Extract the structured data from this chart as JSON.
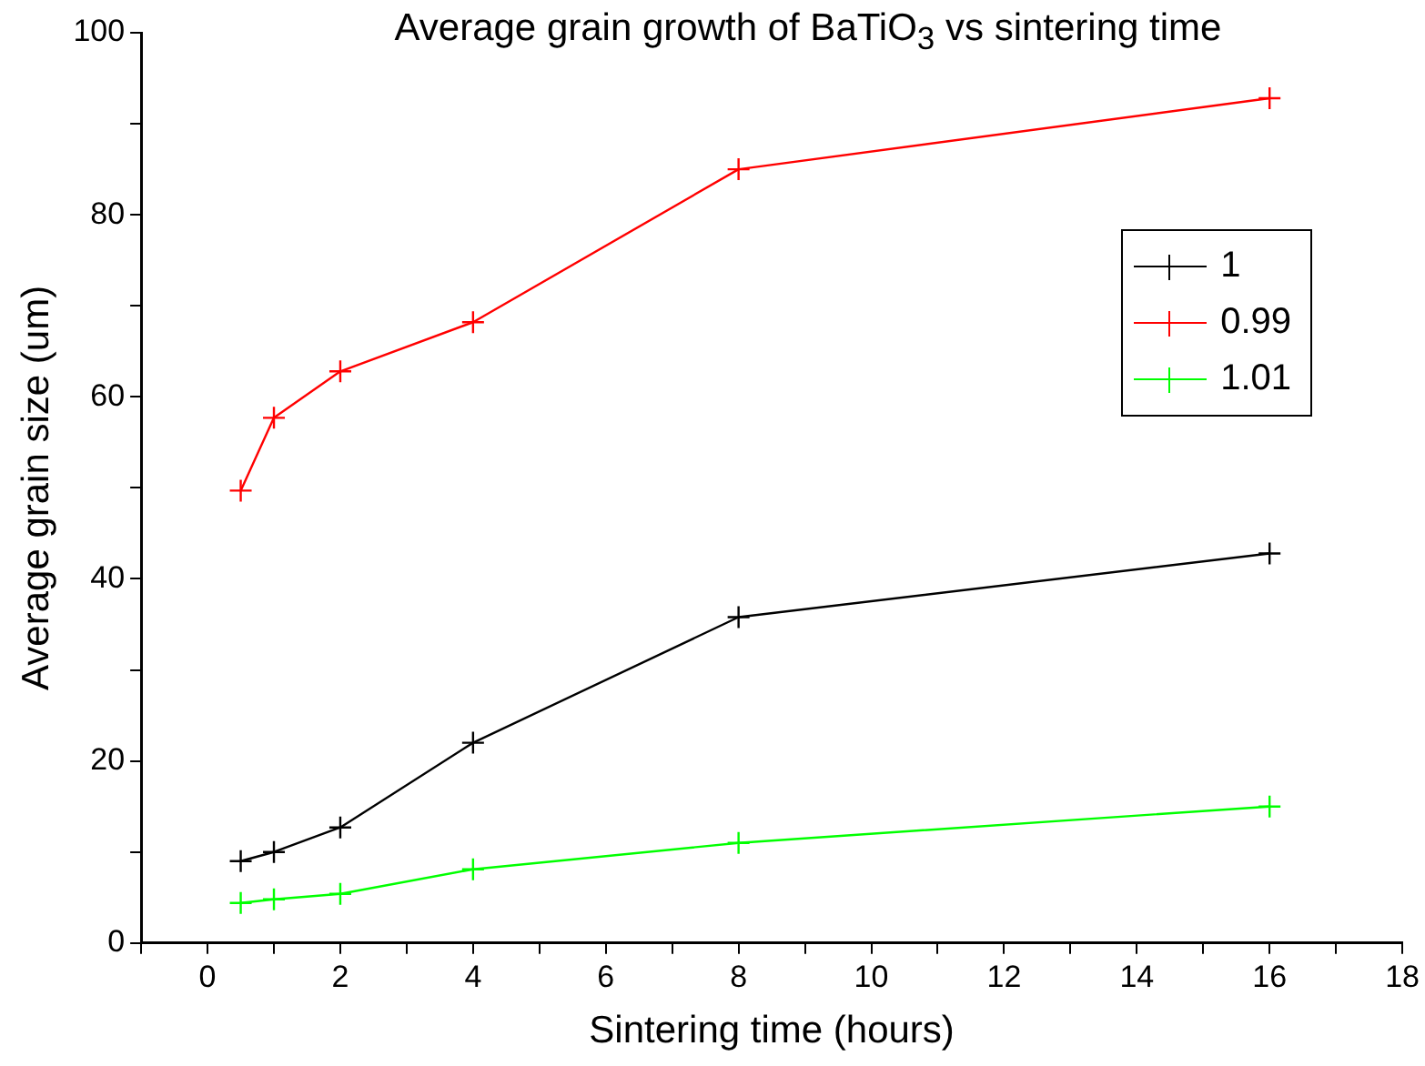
{
  "chart_data": {
    "type": "line",
    "title": "Average grain growth of BaTiO$_{3}$ vs sintering time",
    "xlabel": "Sintering time (hours)",
    "ylabel": "Average grain size (um)",
    "x": [
      0.5,
      1,
      2,
      4,
      8,
      16
    ],
    "series": [
      {
        "name": "1",
        "color": "#000000",
        "values": [
          9,
          10,
          12.7,
          22,
          35.8,
          42.8
        ]
      },
      {
        "name": "0.99",
        "color": "#ff0000",
        "values": [
          49.7,
          57.7,
          62.8,
          68.2,
          85,
          92.8
        ]
      },
      {
        "name": "1.01",
        "color": "#00ff00",
        "values": [
          4.4,
          4.8,
          5.4,
          8.1,
          11,
          15
        ]
      }
    ],
    "xlim": [
      -1,
      18
    ],
    "xticks": [
      {
        "value": -1,
        "label": null
      },
      0,
      {
        "value": 1,
        "label": null
      },
      2,
      {
        "value": 3,
        "label": null
      },
      4,
      {
        "value": 5,
        "label": null
      },
      6,
      {
        "value": 7,
        "label": null
      },
      8,
      {
        "value": 9,
        "label": null
      },
      10,
      {
        "value": 11,
        "label": null
      },
      12,
      {
        "value": 13,
        "label": null
      },
      14,
      {
        "value": 15,
        "label": null
      },
      16,
      {
        "value": 17,
        "label": null
      },
      18
    ],
    "ylim": [
      0,
      100
    ],
    "yticks": [
      0,
      {
        "value": 10,
        "label": null
      },
      20,
      {
        "value": 30,
        "label": null
      },
      40,
      {
        "value": 50,
        "label": null
      },
      60,
      {
        "value": 70,
        "label": null
      },
      80,
      {
        "value": 90,
        "label": null
      },
      100
    ],
    "grid": false,
    "legend": "top right",
    "marker": "cross",
    "line_style": "solid"
  }
}
